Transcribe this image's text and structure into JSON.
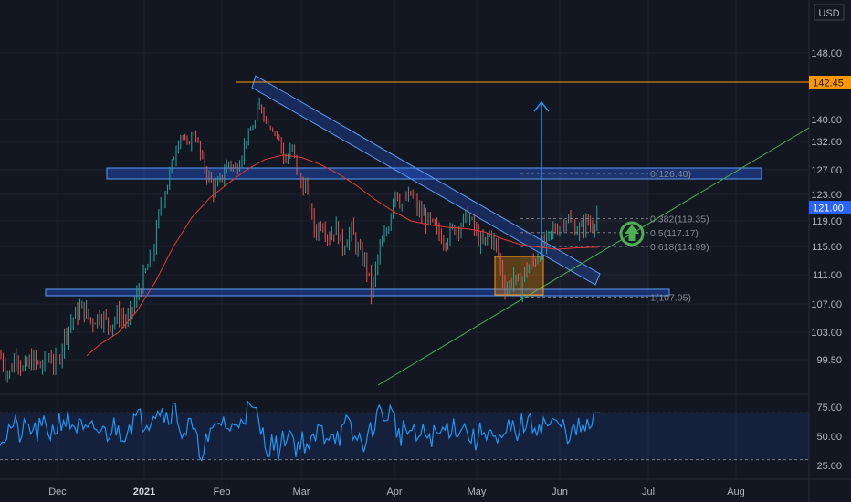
{
  "chart_data": {
    "type": "candlestick",
    "currency": "USD",
    "x_axis": {
      "ticks": [
        "Dec",
        "2021",
        "Feb",
        "Mar",
        "Apr",
        "May",
        "Jun",
        "Jul",
        "Aug"
      ]
    },
    "price_axis": {
      "ticks": [
        148.0,
        140.0,
        132.0,
        127.0,
        123.0,
        119.0,
        115.0,
        111.0,
        107.0,
        103.0,
        99.5
      ],
      "range": [
        96.5,
        152
      ]
    },
    "badges": {
      "resistance": "142.45",
      "last_price": "121.00"
    },
    "fib_levels": [
      {
        "ratio": 0,
        "label": "0(126.40)",
        "price": 126.4
      },
      {
        "ratio": 0.382,
        "label": "0.382(119.35)",
        "price": 119.35
      },
      {
        "ratio": 0.5,
        "label": "0.5(117.17)",
        "price": 117.17
      },
      {
        "ratio": 0.618,
        "label": "0.618(114.99)",
        "price": 114.99
      },
      {
        "ratio": 1,
        "label": "1(107.95)",
        "price": 107.95
      }
    ],
    "support_zone_price": 107.95,
    "resistance_zone_price": 126.4,
    "resistance_line_price": 142.45,
    "rsi": {
      "ticks": [
        75.0,
        50.0,
        25.0
      ],
      "upper_band": 70,
      "lower_band": 30,
      "approx_last_value": 70
    },
    "price_path": [
      [
        0,
        100.0
      ],
      [
        10,
        97.5
      ],
      [
        18,
        100.5
      ],
      [
        25,
        98.0
      ],
      [
        35,
        99.5
      ],
      [
        45,
        98.5
      ],
      [
        55,
        100.0
      ],
      [
        62,
        98.5
      ],
      [
        70,
        102.5
      ],
      [
        80,
        105.0
      ],
      [
        90,
        106.5
      ],
      [
        100,
        104.5
      ],
      [
        110,
        105.5
      ],
      [
        120,
        104.0
      ],
      [
        130,
        105.5
      ],
      [
        140,
        104.5
      ],
      [
        150,
        108.0
      ],
      [
        160,
        111.5
      ],
      [
        168,
        114.0
      ],
      [
        175,
        121.0
      ],
      [
        182,
        124.0
      ],
      [
        190,
        129.0
      ],
      [
        198,
        134.5
      ],
      [
        205,
        131.0
      ],
      [
        212,
        135.5
      ],
      [
        220,
        129.0
      ],
      [
        228,
        126.0
      ],
      [
        235,
        123.5
      ],
      [
        242,
        125.5
      ],
      [
        250,
        128.5
      ],
      [
        258,
        127.0
      ],
      [
        265,
        130.0
      ],
      [
        272,
        134.5
      ],
      [
        280,
        139.5
      ],
      [
        286,
        142.0
      ],
      [
        295,
        138.0
      ],
      [
        305,
        133.5
      ],
      [
        312,
        128.0
      ],
      [
        320,
        131.0
      ],
      [
        328,
        125.0
      ],
      [
        336,
        124.0
      ],
      [
        345,
        117.0
      ],
      [
        352,
        119.0
      ],
      [
        360,
        116.5
      ],
      [
        368,
        118.0
      ],
      [
        375,
        115.0
      ],
      [
        385,
        117.5
      ],
      [
        393,
        114.0
      ],
      [
        400,
        113.0
      ],
      [
        407,
        108.5
      ],
      [
        414,
        113.5
      ],
      [
        420,
        116.0
      ],
      [
        426,
        118.5
      ],
      [
        432,
        124.0
      ],
      [
        440,
        121.5
      ],
      [
        450,
        123.0
      ],
      [
        458,
        120.5
      ],
      [
        465,
        119.5
      ],
      [
        472,
        118.5
      ],
      [
        480,
        117.0
      ],
      [
        487,
        116.0
      ],
      [
        495,
        117.5
      ],
      [
        505,
        118.5
      ],
      [
        512,
        120.0
      ],
      [
        520,
        117.5
      ],
      [
        528,
        115.0
      ],
      [
        536,
        117.0
      ],
      [
        545,
        114.5
      ],
      [
        550,
        110.5
      ],
      [
        556,
        109.0
      ],
      [
        562,
        111.0
      ],
      [
        568,
        109.0
      ],
      [
        575,
        111.5
      ],
      [
        582,
        112.5
      ],
      [
        588,
        113.5
      ],
      [
        594,
        115.0
      ],
      [
        600,
        116.0
      ],
      [
        605,
        117.5
      ],
      [
        612,
        118.0
      ],
      [
        620,
        119.5
      ],
      [
        628,
        118.0
      ],
      [
        636,
        117.5
      ],
      [
        642,
        119.0
      ],
      [
        648,
        118.0
      ],
      [
        652,
        119.5
      ],
      [
        656,
        121.0
      ]
    ],
    "ma_path": [
      [
        95,
        100.0
      ],
      [
        110,
        101.5
      ],
      [
        130,
        103.0
      ],
      [
        150,
        106.0
      ],
      [
        170,
        110.0
      ],
      [
        190,
        115.0
      ],
      [
        210,
        119.5
      ],
      [
        230,
        122.5
      ],
      [
        250,
        124.8
      ],
      [
        270,
        127.0
      ],
      [
        290,
        128.8
      ],
      [
        310,
        129.6
      ],
      [
        330,
        129.2
      ],
      [
        350,
        128.0
      ],
      [
        370,
        126.4
      ],
      [
        390,
        124.5
      ],
      [
        410,
        122.3
      ],
      [
        430,
        120.5
      ],
      [
        450,
        119.0
      ],
      [
        470,
        118.4
      ],
      [
        490,
        118.0
      ],
      [
        510,
        117.8
      ],
      [
        530,
        117.3
      ],
      [
        550,
        116.2
      ],
      [
        570,
        115.3
      ],
      [
        590,
        114.9
      ],
      [
        610,
        114.6
      ],
      [
        630,
        114.8
      ],
      [
        655,
        114.9
      ]
    ]
  }
}
